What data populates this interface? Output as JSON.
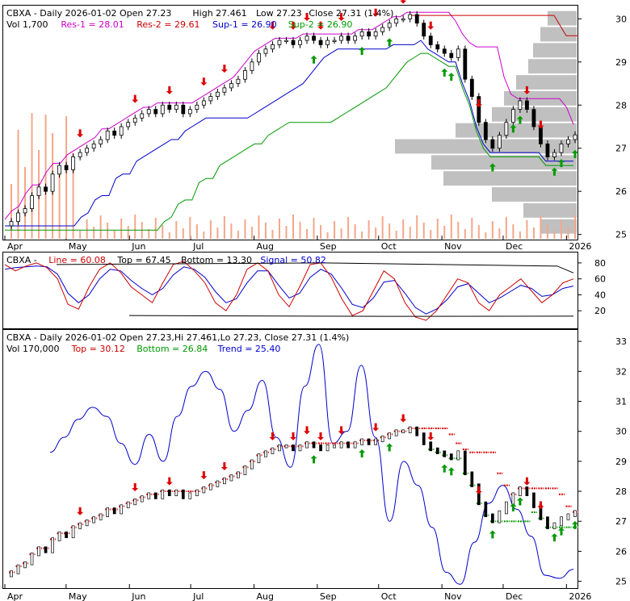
{
  "chart_data": [
    {
      "type": "candlestick",
      "panel": "price",
      "ticker": "CBXA",
      "title_parts": [
        "CBXA - Daily 2026-01-02 Open 27.23",
        "High 27.461",
        "Low 27.23",
        "Close 27.31 (1.4%)"
      ],
      "legend": [
        {
          "label": "Vol 1,700",
          "color": "#000000"
        },
        {
          "label": "Res-1 = 28.01",
          "color": "#cc00cc"
        },
        {
          "label": "Res-2 = 29.61",
          "color": "#cc0000"
        },
        {
          "label": "Sup-1 = 26.90",
          "color": "#0000cc"
        },
        {
          "label": "Sup-2 = 26.90",
          "color": "#009900"
        }
      ],
      "x_labels": [
        "Apr",
        "May",
        "Jun",
        "Jul",
        "Aug",
        "Sep",
        "Oct",
        "Nov",
        "Dec",
        "2026"
      ],
      "x_label_days": [
        0,
        30,
        61,
        91,
        122,
        153,
        183,
        214,
        244,
        275
      ],
      "ylim": [
        24.9,
        30.25
      ],
      "y_ticks": [
        25,
        26,
        27,
        28,
        29,
        30
      ],
      "close": [
        25.3,
        25.5,
        25.6,
        25.9,
        26.1,
        26.0,
        26.4,
        26.6,
        26.5,
        26.8,
        26.9,
        27.0,
        27.1,
        27.2,
        27.4,
        27.3,
        27.5,
        27.6,
        27.7,
        27.8,
        27.9,
        27.8,
        28.0,
        27.9,
        28.0,
        27.8,
        27.9,
        28.0,
        28.1,
        28.2,
        28.3,
        28.4,
        28.5,
        28.6,
        28.8,
        29.0,
        29.2,
        29.3,
        29.4,
        29.5,
        29.5,
        29.4,
        29.5,
        29.6,
        29.5,
        29.4,
        29.5,
        29.5,
        29.6,
        29.5,
        29.6,
        29.7,
        29.6,
        29.7,
        29.8,
        29.9,
        30.0,
        30.0,
        30.1,
        29.9,
        29.6,
        29.4,
        29.3,
        29.2,
        29.1,
        29.3,
        28.6,
        28.2,
        27.6,
        27.2,
        27.0,
        27.3,
        27.6,
        27.9,
        28.1,
        27.9,
        27.5,
        27.1,
        26.8,
        26.9,
        27.1,
        27.2,
        27.31
      ],
      "volume_level_profile": [
        0.15,
        0.22,
        0.35,
        0.55,
        0.6,
        0.75,
        0.5,
        0.35,
        0.3,
        0.25,
        0.2,
        0.18,
        0.15,
        0.12
      ],
      "signals": {
        "down_arrow_index": [
          10,
          18,
          23,
          28,
          31,
          38,
          41,
          43,
          45,
          48,
          53,
          57,
          61,
          68,
          75,
          77
        ],
        "up_arrow_index": [
          44,
          51,
          55,
          63,
          64,
          70,
          73,
          74,
          79,
          80,
          82
        ]
      }
    },
    {
      "type": "line",
      "panel": "stochastic",
      "legend": [
        {
          "label": "CBXA - ",
          "color": "#000000"
        },
        {
          "label": "Line = 60.08",
          "color": "#cc0000"
        },
        {
          "label": "Top = 67.45",
          "color": "#000000"
        },
        {
          "label": "Bottom = 13.30",
          "color": "#000000"
        },
        {
          "label": "Signal = 50.82",
          "color": "#0000cc"
        }
      ],
      "ylim": [
        0,
        90
      ],
      "y_ticks": [
        20,
        40,
        60,
        80
      ],
      "series": [
        {
          "name": "Line",
          "values": [
            78,
            70,
            76,
            80,
            74,
            60,
            28,
            22,
            50,
            72,
            80,
            68,
            50,
            40,
            30,
            55,
            78,
            82,
            70,
            55,
            30,
            20,
            40,
            72,
            80,
            70,
            40,
            25,
            50,
            78,
            80,
            62,
            35,
            14,
            20,
            45,
            70,
            60,
            30,
            12,
            8,
            20,
            40,
            60,
            55,
            30,
            20,
            40,
            50,
            60,
            45,
            30,
            40,
            55,
            60
          ]
        },
        {
          "name": "Signal",
          "values": [
            72,
            74,
            75,
            76,
            75,
            66,
            42,
            30,
            40,
            60,
            72,
            70,
            58,
            48,
            40,
            48,
            65,
            75,
            72,
            62,
            44,
            30,
            35,
            55,
            70,
            70,
            52,
            36,
            42,
            62,
            72,
            66,
            48,
            28,
            24,
            36,
            56,
            58,
            42,
            24,
            16,
            22,
            34,
            50,
            54,
            42,
            30,
            36,
            44,
            52,
            48,
            38,
            40,
            48,
            51
          ]
        }
      ]
    },
    {
      "type": "line",
      "panel": "trend",
      "title_parts": [
        "CBXA - Daily 2026-01-02 Open 27.23,Hi 27.461,Lo 27.23, Close 27.31 (1.4%)"
      ],
      "legend": [
        {
          "label": "Vol 170,000",
          "color": "#000000"
        },
        {
          "label": "Top = 30.12",
          "color": "#cc0000"
        },
        {
          "label": "Bottom = 26.84",
          "color": "#009900"
        },
        {
          "label": "Trend = 25.40",
          "color": "#0000cc"
        }
      ],
      "ylim": [
        24.8,
        33.3
      ],
      "y_ticks": [
        25,
        26,
        27,
        28,
        29,
        30,
        31,
        32,
        33
      ],
      "series": [
        {
          "name": "Trend",
          "values": [
            29.3,
            29.8,
            30.4,
            30.8,
            30.5,
            29.6,
            28.9,
            29.9,
            29.0,
            30.5,
            31.5,
            32.0,
            31.4,
            30.0,
            30.7,
            31.7,
            29.8,
            28.8,
            31.5,
            32.9,
            29.6,
            30.0,
            32.2,
            29.8,
            27.0,
            29.0,
            28.2,
            26.8,
            25.3,
            24.9,
            26.3,
            27.6,
            28.2,
            27.4,
            26.5,
            25.2,
            25.1,
            25.4
          ]
        }
      ]
    }
  ]
}
